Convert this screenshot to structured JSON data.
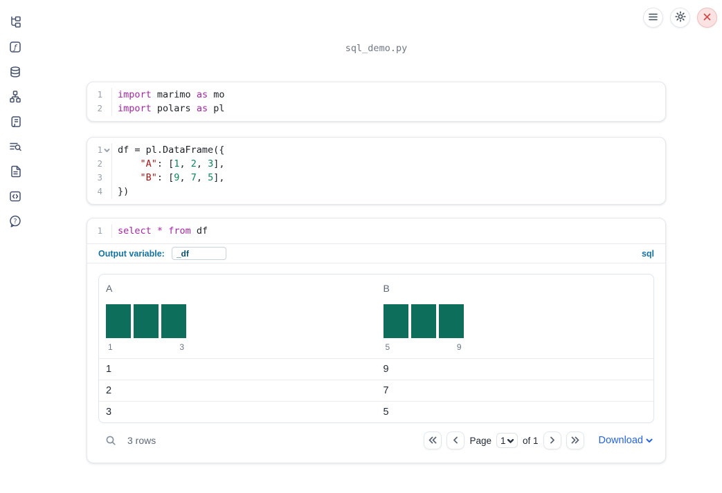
{
  "app": {
    "filename": "sql_demo.py"
  },
  "colors": {
    "accent_blue": "#2563eb",
    "label_teal": "#15719f",
    "hist_bar": "#0e6e5c",
    "code_keyword": "#a626a4",
    "code_string": "#a31515",
    "code_number": "#098658",
    "close_red": "#d64949"
  },
  "topbar": {
    "buttons": [
      "menu",
      "settings",
      "shutdown"
    ]
  },
  "sidebar": {
    "items": [
      {
        "icon": "file-explorer"
      },
      {
        "icon": "variables"
      },
      {
        "icon": "data-sources"
      },
      {
        "icon": "dependency-graph"
      },
      {
        "icon": "scratchpad"
      },
      {
        "icon": "logs"
      },
      {
        "icon": "documentation"
      },
      {
        "icon": "snippets"
      },
      {
        "icon": "help"
      }
    ]
  },
  "cells": [
    {
      "type": "code",
      "lines": [
        {
          "num": "1",
          "tokens": [
            {
              "t": "import",
              "c": "kw"
            },
            {
              "t": " marimo ",
              "c": ""
            },
            {
              "t": "as",
              "c": "kw"
            },
            {
              "t": " mo",
              "c": ""
            }
          ]
        },
        {
          "num": "2",
          "tokens": [
            {
              "t": "import",
              "c": "kw"
            },
            {
              "t": " polars ",
              "c": ""
            },
            {
              "t": "as",
              "c": "kw"
            },
            {
              "t": " pl",
              "c": ""
            }
          ]
        }
      ]
    },
    {
      "type": "code",
      "lines": [
        {
          "num": "1",
          "fold": true,
          "tokens": [
            {
              "t": "df = pl.DataFrame({",
              "c": ""
            }
          ]
        },
        {
          "num": "2",
          "tokens": [
            {
              "t": "    ",
              "c": ""
            },
            {
              "t": "\"A\"",
              "c": "str"
            },
            {
              "t": ": [",
              "c": ""
            },
            {
              "t": "1",
              "c": "num"
            },
            {
              "t": ", ",
              "c": ""
            },
            {
              "t": "2",
              "c": "num"
            },
            {
              "t": ", ",
              "c": ""
            },
            {
              "t": "3",
              "c": "num"
            },
            {
              "t": "],",
              "c": ""
            }
          ]
        },
        {
          "num": "3",
          "tokens": [
            {
              "t": "    ",
              "c": ""
            },
            {
              "t": "\"B\"",
              "c": "str"
            },
            {
              "t": ": [",
              "c": ""
            },
            {
              "t": "9",
              "c": "num"
            },
            {
              "t": ", ",
              "c": ""
            },
            {
              "t": "7",
              "c": "num"
            },
            {
              "t": ", ",
              "c": ""
            },
            {
              "t": "5",
              "c": "num"
            },
            {
              "t": "],",
              "c": ""
            }
          ]
        },
        {
          "num": "4",
          "tokens": [
            {
              "t": "})",
              "c": ""
            }
          ]
        }
      ]
    },
    {
      "type": "sql",
      "lines": [
        {
          "num": "1",
          "tokens": [
            {
              "t": "select",
              "c": "kw"
            },
            {
              "t": " ",
              "c": ""
            },
            {
              "t": "*",
              "c": "kw"
            },
            {
              "t": " ",
              "c": ""
            },
            {
              "t": "from",
              "c": "kw"
            },
            {
              "t": " df",
              "c": ""
            }
          ]
        }
      ],
      "output_variable_label": "Output variable:",
      "output_variable_value": "_df",
      "language_badge": "sql"
    }
  ],
  "table": {
    "columns": [
      {
        "name": "A",
        "histogram": {
          "type": "bar",
          "bars": [
            1,
            1,
            1
          ],
          "min_label": "1",
          "max_label": "3"
        }
      },
      {
        "name": "B",
        "histogram": {
          "type": "bar",
          "bars": [
            1,
            1,
            1
          ],
          "min_label": "5",
          "max_label": "9"
        }
      }
    ],
    "rows": [
      [
        "1",
        "9"
      ],
      [
        "2",
        "7"
      ],
      [
        "3",
        "5"
      ]
    ],
    "footer": {
      "row_count": "3 rows",
      "page_label": "Page",
      "page_value": "1",
      "of_label": "of 1",
      "download_label": "Download"
    }
  }
}
